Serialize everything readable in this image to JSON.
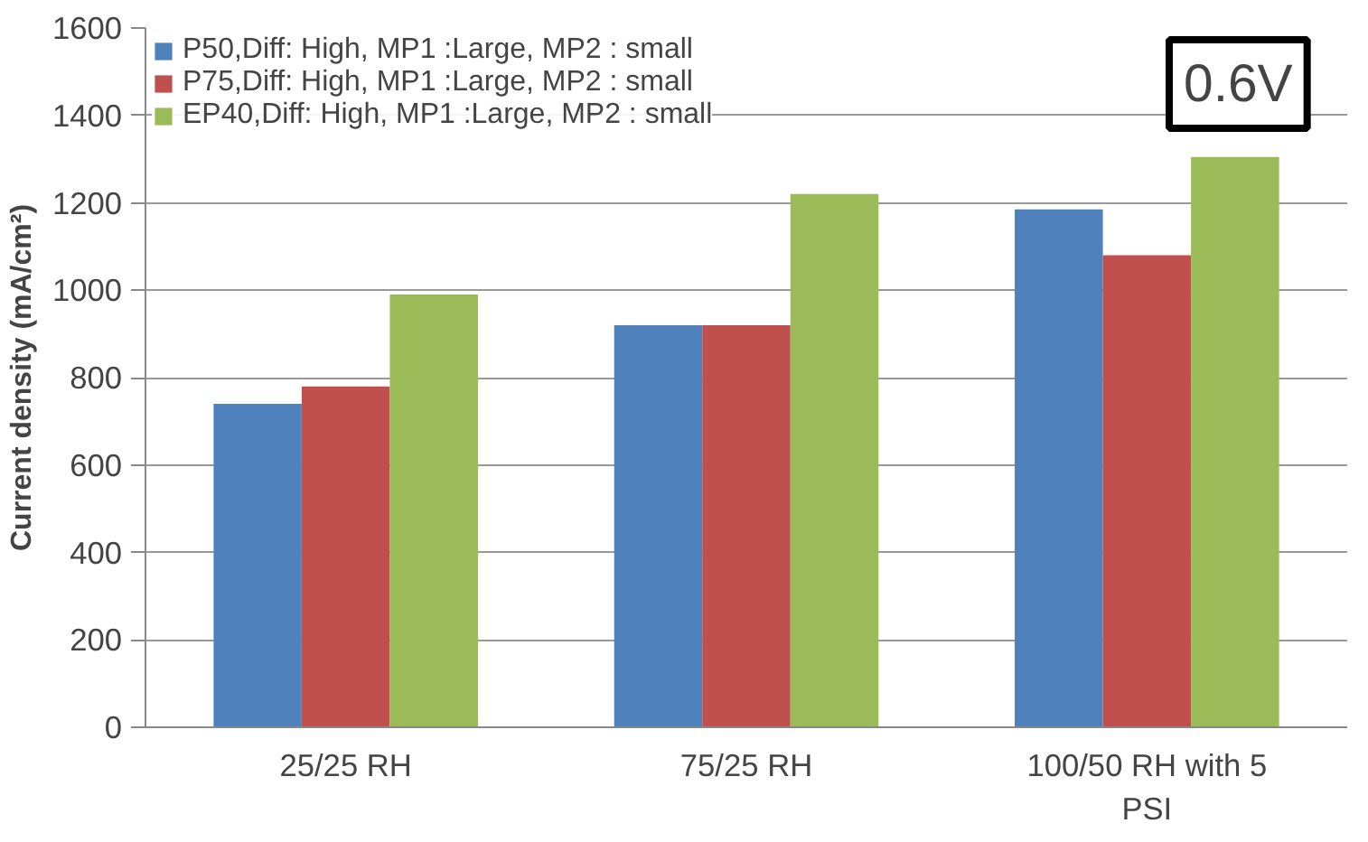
{
  "chart_data": {
    "type": "bar",
    "ylabel": "Current density (mA/cm²)",
    "categories": [
      "25/25 RH",
      "75/25 RH",
      "100/50 RH with 5 PSI"
    ],
    "series": [
      {
        "name": "P50,Diff: High, MP1 :Large, MP2 : small",
        "color": "#4f81bd",
        "values": [
          740,
          920,
          1185
        ]
      },
      {
        "name": "P75,Diff: High, MP1 :Large, MP2 : small",
        "color": "#c0504d",
        "values": [
          780,
          920,
          1080
        ]
      },
      {
        "name": "EP40,Diff: High, MP1 :Large, MP2 : small",
        "color": "#9bbb59",
        "values": [
          990,
          1220,
          1305
        ]
      }
    ],
    "ylim": [
      0,
      1600
    ],
    "yticks": [
      0,
      200,
      400,
      600,
      800,
      1000,
      1200,
      1400,
      1600
    ],
    "grid": "y",
    "legend": "top left",
    "annotations": [
      "0.6V"
    ]
  }
}
